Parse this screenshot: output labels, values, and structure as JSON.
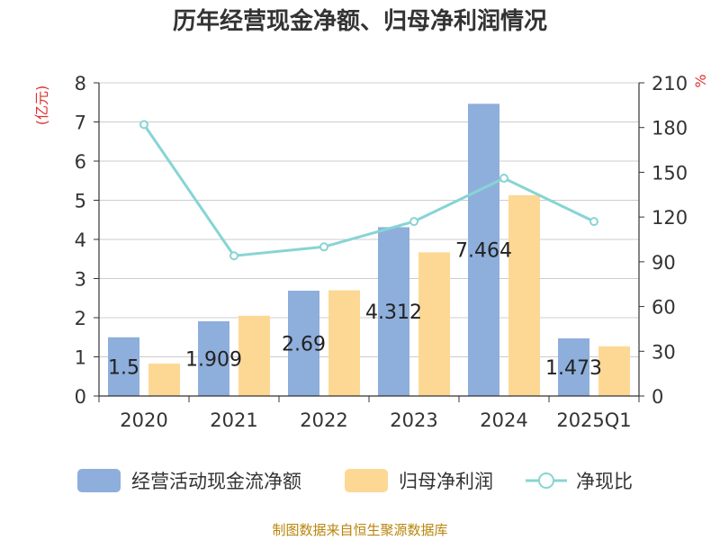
{
  "chart_data": {
    "type": "bar",
    "title": "历年经营现金净额、归母净利润情况",
    "categories": [
      "2020",
      "2021",
      "2022",
      "2023",
      "2024",
      "2025Q1"
    ],
    "ylabel_left": "(亿元)",
    "ylabel_right": "%",
    "ylim_left": [
      0,
      8
    ],
    "yticks_left": [
      "0",
      "1",
      "2",
      "3",
      "4",
      "5",
      "6",
      "7",
      "8"
    ],
    "ylim_right": [
      0,
      210
    ],
    "yticks_right": [
      "0",
      "30",
      "60",
      "90",
      "120",
      "150",
      "180",
      "210"
    ],
    "grid": true,
    "legend_position": "bottom",
    "series": [
      {
        "name": "经营活动现金流净额",
        "kind": "bar",
        "axis": "left",
        "color": "#8eaedc",
        "values": [
          1.5,
          1.909,
          2.69,
          4.312,
          7.464,
          1.473
        ],
        "data_labels": [
          "1.5",
          "1.909",
          "2.69",
          "4.312",
          "7.464",
          "1.473"
        ]
      },
      {
        "name": "归母净利润",
        "kind": "bar",
        "axis": "left",
        "color": "#fdd895",
        "values": [
          0.83,
          2.05,
          2.7,
          3.67,
          5.13,
          1.27
        ]
      },
      {
        "name": "净现比",
        "kind": "line",
        "axis": "right",
        "color": "#88d4d4",
        "values": [
          182,
          94,
          100,
          117,
          146,
          117
        ]
      }
    ]
  },
  "source_note": "制图数据来自恒生聚源数据库"
}
